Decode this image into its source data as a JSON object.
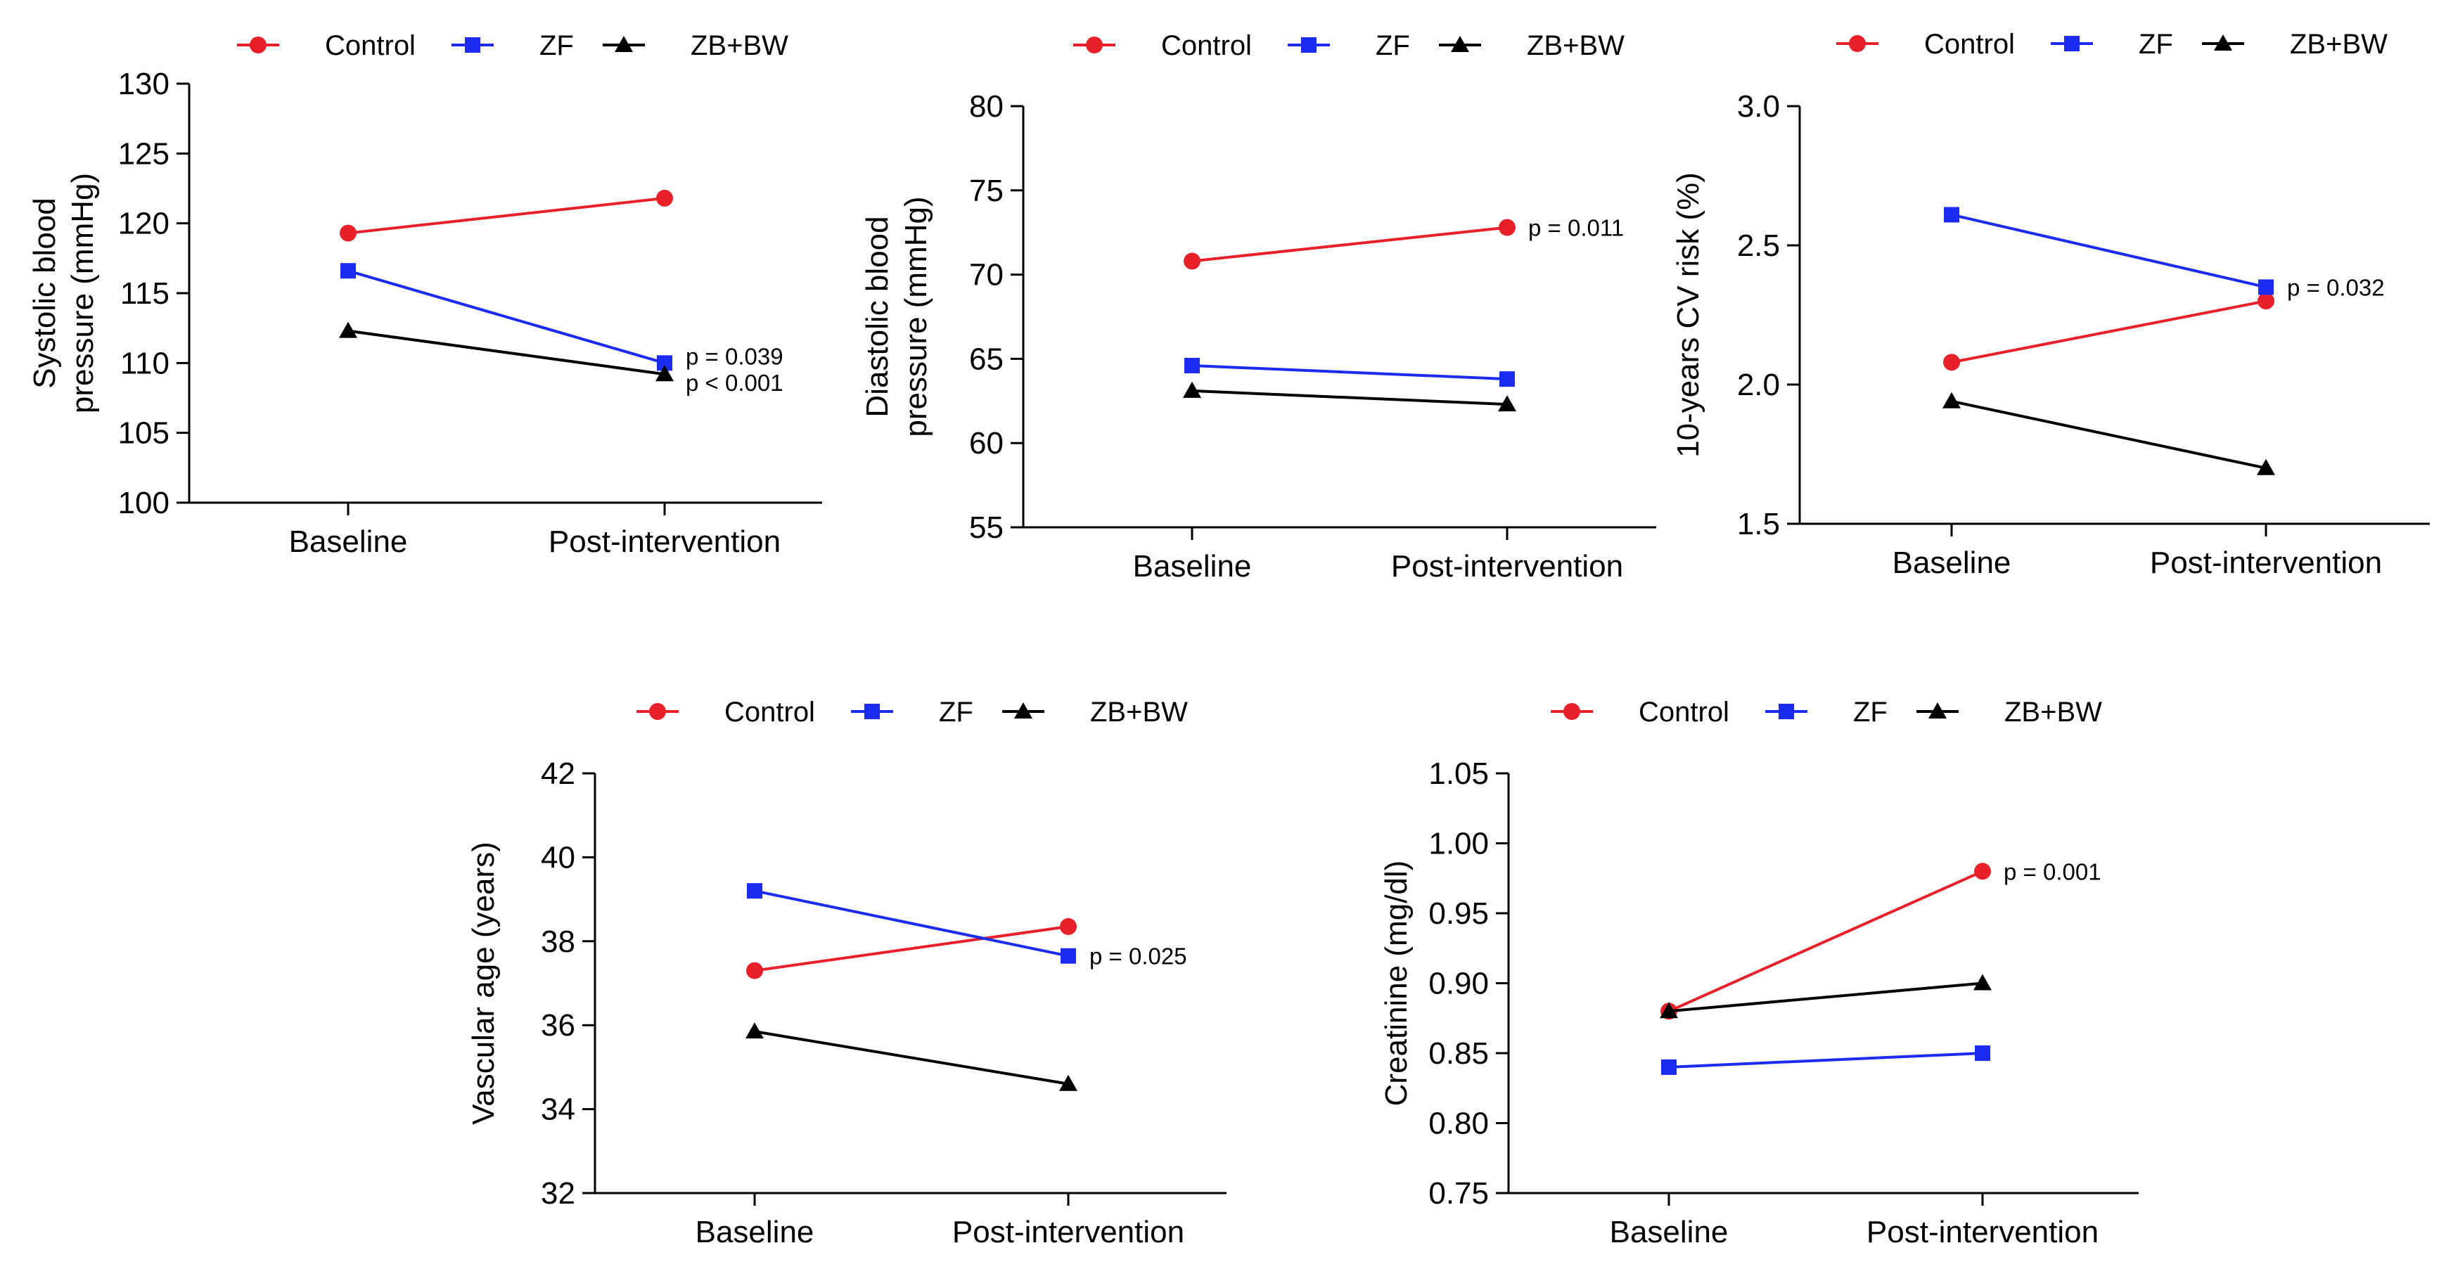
{
  "legend": [
    "Control",
    "ZF",
    "ZB+BW"
  ],
  "colors": {
    "Control": "#e8202a",
    "ZF": "#1c2bf0",
    "ZB+BW": "#000000",
    "axis": "#000000"
  },
  "markers": {
    "Control": "circle",
    "ZF": "square",
    "ZB+BW": "triangle"
  },
  "chart_data": [
    {
      "type": "line",
      "title": "",
      "xlabel": "",
      "ylabel": "Systolic blood pressure (mmHg)",
      "ylabel_lines": [
        "Systolic blood",
        "pressure (mmHg)"
      ],
      "categories": [
        "Baseline",
        "Post-intervention"
      ],
      "ylim": [
        100,
        130
      ],
      "yticks": [
        100,
        105,
        110,
        115,
        120,
        125,
        130
      ],
      "tick_labels": [
        "100",
        "105",
        "110",
        "115",
        "120",
        "125",
        "130"
      ],
      "series": [
        {
          "name": "Control",
          "values": [
            119.3,
            121.8
          ]
        },
        {
          "name": "ZF",
          "values": [
            116.6,
            110.0
          ]
        },
        {
          "name": "ZB+BW",
          "values": [
            112.3,
            109.2
          ]
        }
      ],
      "annotations": [
        {
          "text": "p = 0.039",
          "x": "Post-intervention",
          "y": 110.5
        },
        {
          "text": "p < 0.001",
          "x": "Post-intervention",
          "y": 108.6
        }
      ]
    },
    {
      "type": "line",
      "title": "",
      "xlabel": "",
      "ylabel": "Diastolic blood pressure (mmHg)",
      "ylabel_lines": [
        "Diastolic blood",
        "pressure (mmHg)"
      ],
      "categories": [
        "Baseline",
        "Post-intervention"
      ],
      "ylim": [
        55,
        80
      ],
      "yticks": [
        55,
        60,
        65,
        70,
        75,
        80
      ],
      "tick_labels": [
        "55",
        "60",
        "65",
        "70",
        "75",
        "80"
      ],
      "series": [
        {
          "name": "Control",
          "values": [
            70.8,
            72.8
          ]
        },
        {
          "name": "ZF",
          "values": [
            64.6,
            63.8
          ]
        },
        {
          "name": "ZB+BW",
          "values": [
            63.1,
            62.3
          ]
        }
      ],
      "annotations": [
        {
          "text": "p = 0.011",
          "x": "Post-intervention",
          "y": 72.8
        }
      ]
    },
    {
      "type": "line",
      "title": "",
      "xlabel": "",
      "ylabel": "10-years CV risk (%)",
      "ylabel_lines": [
        "10-years CV risk (%)"
      ],
      "categories": [
        "Baseline",
        "Post-intervention"
      ],
      "ylim": [
        1.5,
        3.0
      ],
      "yticks": [
        1.5,
        2.0,
        2.5,
        3.0
      ],
      "tick_labels": [
        "1.5",
        "2.0",
        "2.5",
        "3.0"
      ],
      "series": [
        {
          "name": "Control",
          "values": [
            2.08,
            2.3
          ]
        },
        {
          "name": "ZF",
          "values": [
            2.61,
            2.35
          ]
        },
        {
          "name": "ZB+BW",
          "values": [
            1.94,
            1.7
          ]
        }
      ],
      "annotations": [
        {
          "text": "p = 0.032",
          "x": "Post-intervention",
          "y": 2.35
        }
      ]
    },
    {
      "type": "line",
      "title": "",
      "xlabel": "",
      "ylabel": "Vascular age (years)",
      "ylabel_lines": [
        "Vascular age (years)"
      ],
      "categories": [
        "Baseline",
        "Post-intervention"
      ],
      "ylim": [
        32,
        42
      ],
      "yticks": [
        32,
        34,
        36,
        38,
        40,
        42
      ],
      "tick_labels": [
        "32",
        "34",
        "36",
        "38",
        "40",
        "42"
      ],
      "series": [
        {
          "name": "Control",
          "values": [
            37.3,
            38.35
          ]
        },
        {
          "name": "ZF",
          "values": [
            39.2,
            37.65
          ]
        },
        {
          "name": "ZB+BW",
          "values": [
            35.85,
            34.6
          ]
        }
      ],
      "annotations": [
        {
          "text": "p = 0.025",
          "x": "Post-intervention",
          "y": 37.65
        }
      ]
    },
    {
      "type": "line",
      "title": "",
      "xlabel": "",
      "ylabel": "Creatinine (mg/dl)",
      "ylabel_lines": [
        "Creatinine (mg/dl)"
      ],
      "categories": [
        "Baseline",
        "Post-intervention"
      ],
      "ylim": [
        0.75,
        1.05
      ],
      "yticks": [
        0.75,
        0.8,
        0.85,
        0.9,
        0.95,
        1.0,
        1.05
      ],
      "tick_labels": [
        "0.75",
        "0.80",
        "0.85",
        "0.90",
        "0.95",
        "1.00",
        "1.05"
      ],
      "series": [
        {
          "name": "Control",
          "values": [
            0.88,
            0.98
          ]
        },
        {
          "name": "ZF",
          "values": [
            0.84,
            0.85
          ]
        },
        {
          "name": "ZB+BW",
          "values": [
            0.88,
            0.9
          ]
        }
      ],
      "annotations": [
        {
          "text": "p = 0.001",
          "x": "Post-intervention",
          "y": 0.98
        }
      ]
    }
  ]
}
